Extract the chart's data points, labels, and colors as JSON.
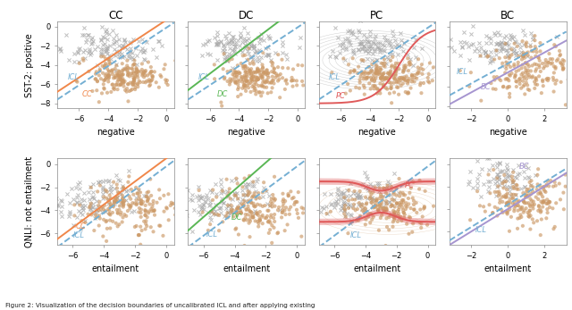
{
  "col_titles": [
    "CC",
    "DC",
    "PC",
    "BC"
  ],
  "row_labels": [
    "SST-2: positive",
    "QNLI: not entailment"
  ],
  "row_xlabels": [
    "negative",
    "entailment"
  ],
  "icl_color": "#74afd3",
  "cc_color": "#f0874a",
  "dc_color": "#5ab755",
  "pc_color": "#e05a5a",
  "bc_color": "#a695d0",
  "scatter_orange": "#cc9966",
  "scatter_gray": "#aaaaaa",
  "sst2_xlim": [
    -7.5,
    0.5
  ],
  "sst2_ylim": [
    -8.5,
    0.5
  ],
  "sst2_bc_xlim": [
    -3.2,
    3.2
  ],
  "sst2_bc_ylim": [
    -4.2,
    4.5
  ],
  "qnli_xlim": [
    -7.0,
    0.5
  ],
  "qnli_ylim": [
    -7.0,
    0.5
  ],
  "qnli_bc_xlim": [
    -3.2,
    3.2
  ],
  "qnli_bc_ylim": [
    -3.2,
    4.5
  ]
}
